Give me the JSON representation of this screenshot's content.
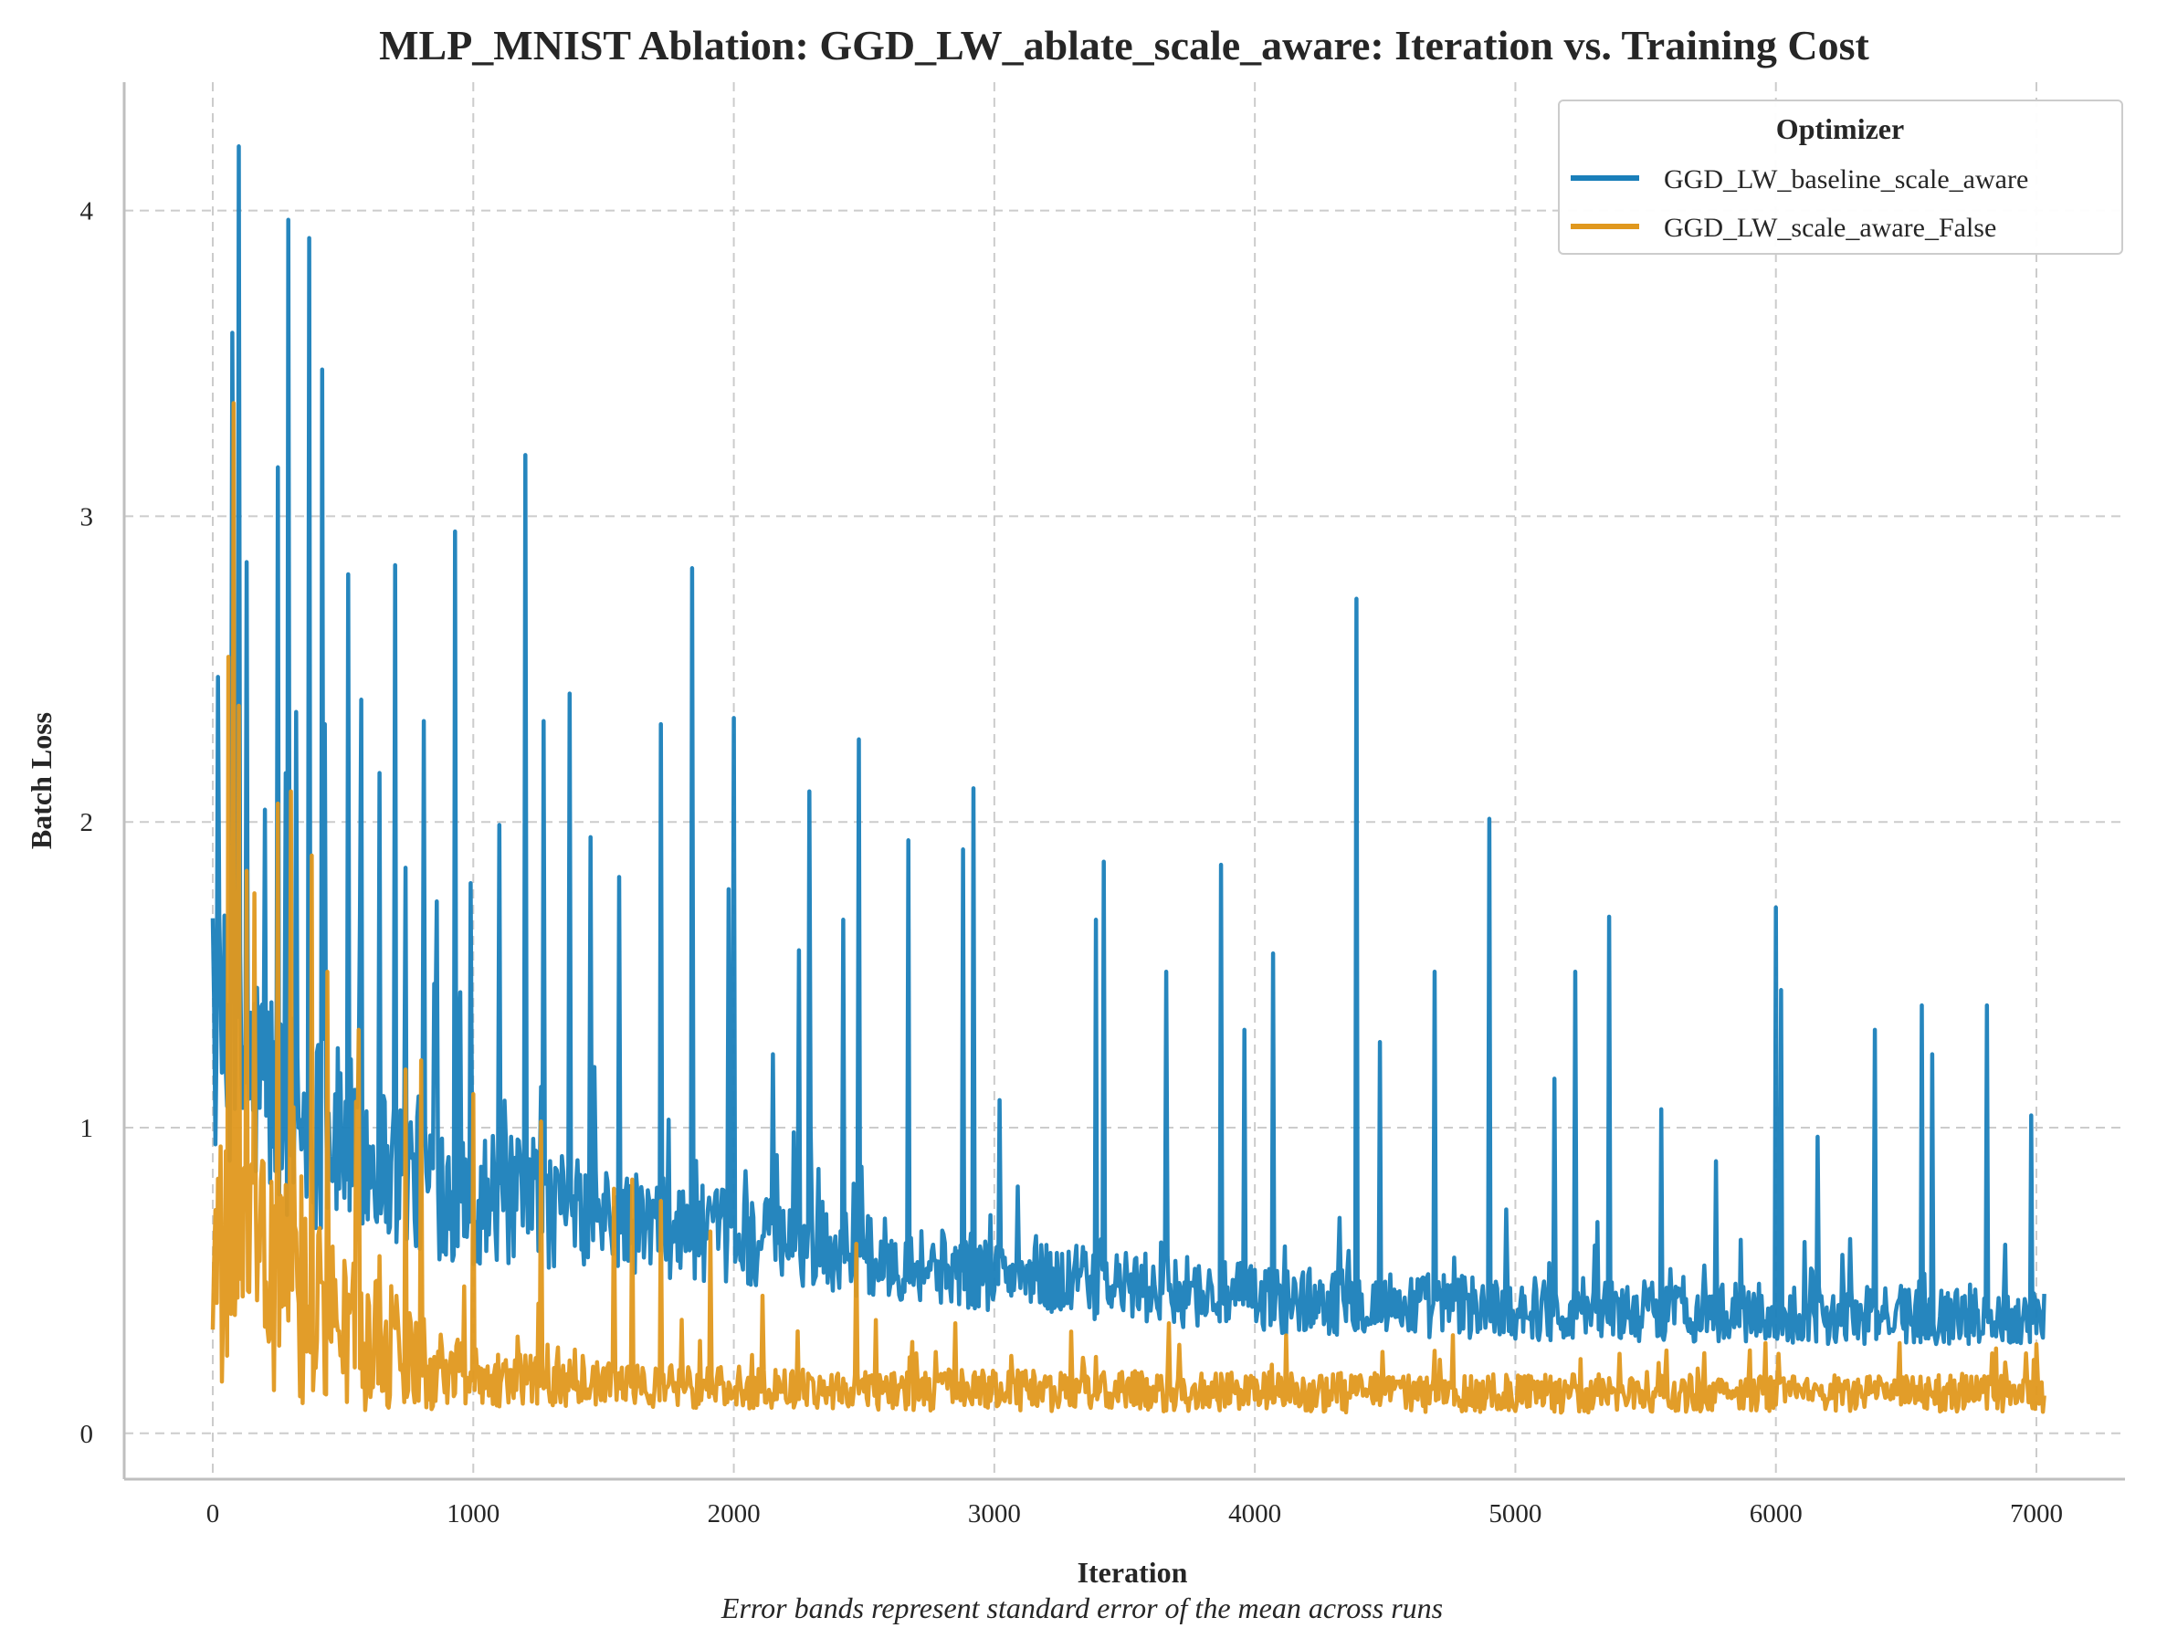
{
  "chart_data": {
    "type": "line",
    "title": "MLP_MNIST Ablation: GGD_LW_ablate_scale_aware: Iteration vs. Training Cost",
    "xlabel": "Iteration",
    "ylabel": "Batch Loss",
    "caption": "Error bands represent standard error of the mean across runs",
    "xlim": [
      -340,
      7340
    ],
    "ylim": [
      -0.15,
      4.42
    ],
    "xticks": [
      0,
      1000,
      2000,
      3000,
      4000,
      5000,
      6000,
      7000
    ],
    "xtick_labels": [
      "0",
      "1000",
      "2000",
      "3000",
      "4000",
      "5000",
      "6000",
      "7000"
    ],
    "yticks": [
      0,
      1,
      2,
      3,
      4
    ],
    "ytick_labels": [
      "0",
      "1",
      "2",
      "3",
      "4"
    ],
    "grid": true,
    "legend": {
      "title": "Optimizer",
      "placement": "top-right"
    },
    "series": [
      {
        "name": "GGD_LW_baseline_scale_aware",
        "color": "#1a7fba",
        "x_range": [
          0,
          7030
        ],
        "baseline": [
          [
            0,
            1.3
          ],
          [
            300,
            1.05
          ],
          [
            600,
            0.9
          ],
          [
            1000,
            0.78
          ],
          [
            1500,
            0.7
          ],
          [
            2000,
            0.64
          ],
          [
            2500,
            0.58
          ],
          [
            3000,
            0.52
          ],
          [
            3500,
            0.48
          ],
          [
            4000,
            0.44
          ],
          [
            5000,
            0.41
          ],
          [
            6000,
            0.39
          ],
          [
            7030,
            0.38
          ]
        ],
        "noise_amplitude": [
          [
            0,
            0.45
          ],
          [
            500,
            0.3
          ],
          [
            1500,
            0.17
          ],
          [
            3000,
            0.12
          ],
          [
            7030,
            0.09
          ]
        ],
        "spikes": [
          [
            100,
            4.21
          ],
          [
            75,
            3.6
          ],
          [
            290,
            3.97
          ],
          [
            370,
            3.91
          ],
          [
            420,
            3.48
          ],
          [
            250,
            3.16
          ],
          [
            130,
            2.85
          ],
          [
            200,
            2.04
          ],
          [
            320,
            2.36
          ],
          [
            430,
            2.32
          ],
          [
            520,
            2.81
          ],
          [
            570,
            2.4
          ],
          [
            640,
            2.16
          ],
          [
            700,
            2.84
          ],
          [
            740,
            1.85
          ],
          [
            810,
            2.33
          ],
          [
            860,
            1.74
          ],
          [
            930,
            2.95
          ],
          [
            990,
            1.8
          ],
          [
            1100,
            1.99
          ],
          [
            1200,
            3.2
          ],
          [
            1270,
            2.33
          ],
          [
            1370,
            2.42
          ],
          [
            1450,
            1.95
          ],
          [
            1560,
            1.82
          ],
          [
            1720,
            2.32
          ],
          [
            1840,
            2.83
          ],
          [
            1980,
            1.78
          ],
          [
            2000,
            2.34
          ],
          [
            2150,
            1.24
          ],
          [
            2250,
            1.58
          ],
          [
            2290,
            2.1
          ],
          [
            2420,
            1.68
          ],
          [
            2480,
            2.27
          ],
          [
            2670,
            1.94
          ],
          [
            2880,
            1.91
          ],
          [
            2920,
            2.11
          ],
          [
            3020,
            1.09
          ],
          [
            3390,
            1.68
          ],
          [
            3420,
            1.87
          ],
          [
            3660,
            1.51
          ],
          [
            3870,
            1.86
          ],
          [
            3960,
            1.32
          ],
          [
            4070,
            1.57
          ],
          [
            4390,
            2.73
          ],
          [
            4480,
            1.28
          ],
          [
            4690,
            1.51
          ],
          [
            4900,
            2.01
          ],
          [
            5150,
            1.16
          ],
          [
            5230,
            1.51
          ],
          [
            5360,
            1.69
          ],
          [
            5560,
            1.06
          ],
          [
            5770,
            0.89
          ],
          [
            6000,
            1.72
          ],
          [
            6020,
            1.45
          ],
          [
            6160,
            0.97
          ],
          [
            6380,
            1.32
          ],
          [
            6560,
            1.4
          ],
          [
            6600,
            1.24
          ],
          [
            6810,
            1.4
          ],
          [
            6980,
            1.04
          ]
        ]
      },
      {
        "name": "GGD_LW_scale_aware_False",
        "color": "#e0981e",
        "x_range": [
          0,
          7030
        ],
        "baseline": [
          [
            0,
            0.5
          ],
          [
            150,
            0.55
          ],
          [
            400,
            0.38
          ],
          [
            800,
            0.24
          ],
          [
            1100,
            0.18
          ],
          [
            1500,
            0.16
          ],
          [
            2000,
            0.15
          ],
          [
            3000,
            0.14
          ],
          [
            5000,
            0.13
          ],
          [
            7030,
            0.13
          ]
        ],
        "noise_amplitude": [
          [
            0,
            0.45
          ],
          [
            300,
            0.35
          ],
          [
            700,
            0.2
          ],
          [
            1000,
            0.1
          ],
          [
            1500,
            0.07
          ],
          [
            7030,
            0.06
          ]
        ],
        "spikes": [
          [
            80,
            3.37
          ],
          [
            60,
            2.54
          ],
          [
            100,
            2.38
          ],
          [
            130,
            1.84
          ],
          [
            250,
            2.06
          ],
          [
            300,
            2.1
          ],
          [
            380,
            1.89
          ],
          [
            440,
            1.51
          ],
          [
            560,
            1.32
          ],
          [
            740,
            1.19
          ],
          [
            800,
            1.22
          ],
          [
            1000,
            1.11
          ],
          [
            1260,
            1.02
          ],
          [
            1540,
            0.8
          ],
          [
            1610,
            0.83
          ],
          [
            1720,
            0.76
          ],
          [
            1910,
            0.66
          ],
          [
            2110,
            0.45
          ],
          [
            2470,
            0.62
          ],
          [
            2850,
            0.36
          ],
          [
            3390,
            0.25
          ],
          [
            3670,
            0.36
          ],
          [
            4120,
            0.32
          ],
          [
            4690,
            0.27
          ],
          [
            5550,
            0.23
          ],
          [
            6010,
            0.26
          ],
          [
            6990,
            0.24
          ]
        ]
      }
    ]
  }
}
